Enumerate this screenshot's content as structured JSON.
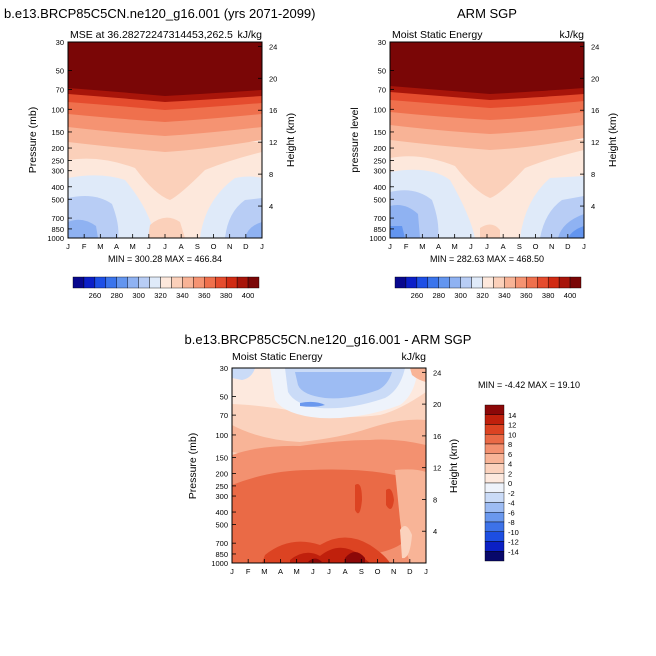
{
  "chart_data": [
    {
      "type": "heatmap",
      "title": "b.e13.BRCP85C5CN.ne120_g16.001 (yrs 2071-2099)",
      "subtitle_left": "MSE at 36.28272247314453,262.5",
      "subtitle_right": "kJ/kg",
      "ylabel": "Pressure (mb)",
      "ylabel_right": "Height (km)",
      "xlabels": [
        "J",
        "F",
        "M",
        "A",
        "M",
        "J",
        "J",
        "A",
        "S",
        "O",
        "N",
        "D",
        "J"
      ],
      "yticks": [
        "30",
        "50",
        "70",
        "100",
        "150",
        "200",
        "250",
        "300",
        "400",
        "500",
        "700",
        "850",
        "1000"
      ],
      "yticks_right": [
        "24",
        "20",
        "16",
        "12",
        "8",
        "4"
      ],
      "min_max": "MIN = 300.28 MAX = 466.84",
      "colorbar_labels": [
        "260",
        "280",
        "300",
        "320",
        "340",
        "360",
        "380",
        "400"
      ]
    },
    {
      "type": "heatmap",
      "title": "ARM SGP",
      "subtitle_left": "Moist Static Energy",
      "subtitle_right": "kJ/kg",
      "ylabel": "pressure level",
      "ylabel_right": "Height (km)",
      "xlabels": [
        "J",
        "F",
        "M",
        "A",
        "M",
        "J",
        "J",
        "A",
        "S",
        "O",
        "N",
        "D",
        "J"
      ],
      "yticks": [
        "30",
        "50",
        "70",
        "100",
        "150",
        "200",
        "250",
        "300",
        "400",
        "500",
        "700",
        "850",
        "1000"
      ],
      "yticks_right": [
        "24",
        "20",
        "16",
        "12",
        "8",
        "4"
      ],
      "min_max": "MIN = 282.63 MAX = 468.50",
      "colorbar_labels": [
        "260",
        "280",
        "300",
        "320",
        "340",
        "360",
        "380",
        "400"
      ]
    },
    {
      "type": "heatmap",
      "title": "b.e13.BRCP85C5CN.ne120_g16.001 - ARM SGP",
      "subtitle_left": "Moist Static Energy",
      "subtitle_right": "kJ/kg",
      "ylabel": "Pressure (mb)",
      "ylabel_right": "Height (km)",
      "xlabels": [
        "J",
        "F",
        "M",
        "A",
        "M",
        "J",
        "J",
        "A",
        "S",
        "O",
        "N",
        "D",
        "J"
      ],
      "yticks": [
        "30",
        "50",
        "70",
        "100",
        "150",
        "200",
        "250",
        "300",
        "400",
        "500",
        "700",
        "850",
        "1000"
      ],
      "yticks_right": [
        "24",
        "20",
        "16",
        "12",
        "8",
        "4"
      ],
      "min_max": "MIN = -4.42 MAX =  19.10",
      "colorbar_labels": [
        "14",
        "12",
        "10",
        "8",
        "6",
        "4",
        "2",
        "0",
        "-2",
        "-4",
        "-6",
        "-8",
        "-10",
        "-12",
        "-14"
      ]
    }
  ],
  "colors": {
    "abs_scale": [
      "#08088e",
      "#0b1fc8",
      "#1d4fe6",
      "#3a74ec",
      "#6395ef",
      "#8fb2f2",
      "#b8cdf5",
      "#dfeaf9",
      "#fde8dc",
      "#fbd0ba",
      "#f8b396",
      "#f59372",
      "#ef704d",
      "#e54c2e",
      "#d12b13",
      "#a8150a",
      "#7a0606"
    ],
    "diff_scale": [
      "#08086a",
      "#0b20c4",
      "#1d4ee2",
      "#3d72e8",
      "#6a98ee",
      "#9dbcf3",
      "#cadbf7",
      "#eef3fb",
      "#fde9de",
      "#fbd2bd",
      "#f8b497",
      "#f39170",
      "#ea6a46",
      "#dc4322",
      "#c0200c",
      "#8c0808"
    ]
  }
}
